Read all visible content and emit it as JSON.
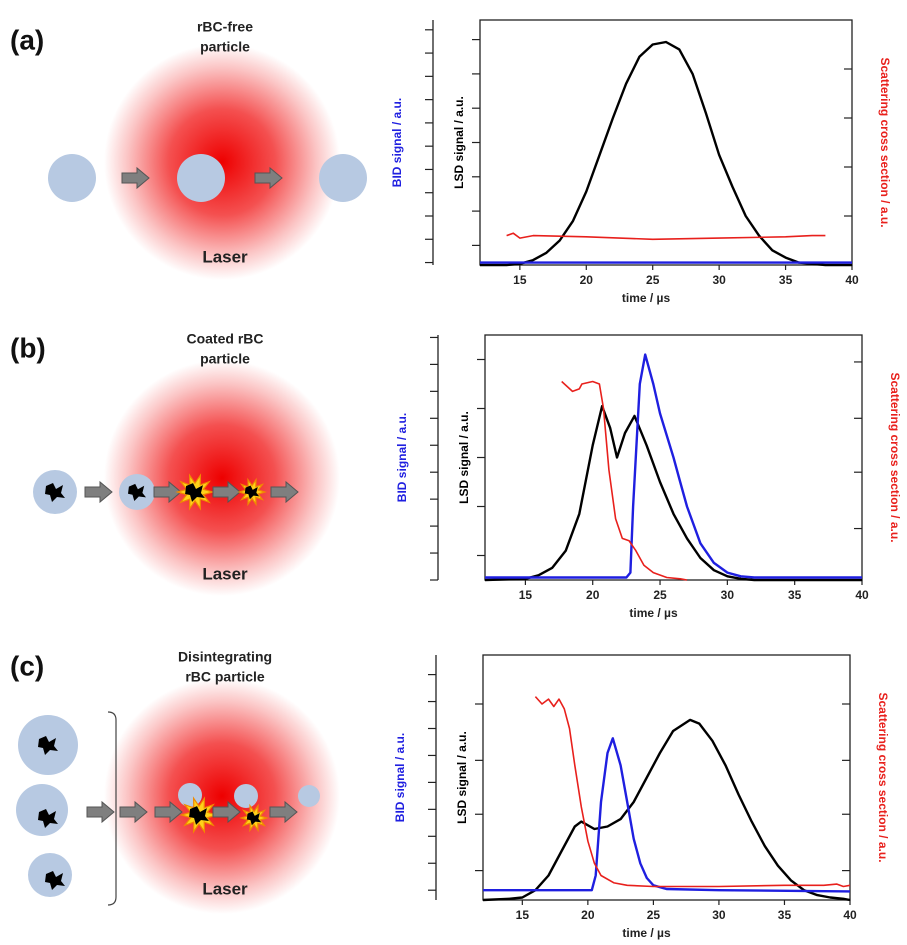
{
  "diagrams": [
    {
      "label": "(a)",
      "title": [
        "rBC-free",
        "particle"
      ],
      "laser": "Laser"
    },
    {
      "label": "(b)",
      "title": [
        "Coated rBC",
        "particle"
      ],
      "laser": "Laser"
    },
    {
      "label": "(c)",
      "title": [
        "Disintegrating",
        "rBC particle"
      ],
      "laser": "Laser"
    }
  ],
  "chart_data": [
    {
      "type": "line",
      "x_label": "time / µs",
      "y_label": "LSD signal / a.u.",
      "y3_label": "BID signal / a.u.",
      "y2_label": "Scattering cross section / a.u.",
      "xlim": [
        12,
        40
      ],
      "xticks": [
        15,
        20,
        25,
        30,
        35,
        40
      ],
      "ylim": [
        0,
        1
      ],
      "yticks": [
        0.08,
        0.22,
        0.36,
        0.5,
        0.64,
        0.78,
        0.92
      ],
      "y3lim": [
        0,
        1
      ],
      "y3ticks": [
        0.01,
        0.105,
        0.2,
        0.295,
        0.39,
        0.485,
        0.58,
        0.675,
        0.77,
        0.865,
        0.96
      ],
      "y2lim": [
        0,
        1
      ],
      "y2ticks": [
        0,
        0.2,
        0.4,
        0.6,
        0.8
      ],
      "series": [
        {
          "name": "LSD",
          "color": "#000000",
          "x": [
            12,
            13,
            14,
            15,
            16,
            17,
            18,
            19,
            20,
            21,
            22,
            23,
            24,
            25,
            26,
            27,
            28,
            29,
            30,
            31,
            32,
            33,
            34,
            35,
            36,
            37,
            38,
            39,
            40
          ],
          "values": [
            0,
            0,
            0,
            0.005,
            0.02,
            0.05,
            0.1,
            0.18,
            0.3,
            0.45,
            0.6,
            0.74,
            0.85,
            0.9,
            0.91,
            0.88,
            0.78,
            0.62,
            0.45,
            0.32,
            0.2,
            0.12,
            0.06,
            0.03,
            0.01,
            0.005,
            0,
            0,
            0
          ]
        },
        {
          "name": "BID",
          "color": "#1f1fe0",
          "axis": "y3",
          "x": [
            12,
            40
          ],
          "values": [
            0.01,
            0.01
          ]
        },
        {
          "name": "Scattering",
          "color": "#e8201c",
          "axis": "y2",
          "x": [
            14,
            14.5,
            15,
            16,
            20,
            25,
            30,
            35,
            37,
            38
          ],
          "values": [
            0.12,
            0.13,
            0.11,
            0.12,
            0.115,
            0.105,
            0.11,
            0.115,
            0.12,
            0.12
          ]
        }
      ]
    },
    {
      "type": "line",
      "x_label": "time / µs",
      "y_label": "LSD signal / a.u.",
      "y3_label": "BID signal / a.u.",
      "y2_label": "Scattering cross section / a.u.",
      "xlim": [
        12,
        40
      ],
      "xticks": [
        15,
        20,
        25,
        30,
        35,
        40
      ],
      "ylim": [
        0,
        1
      ],
      "yticks": [
        0.1,
        0.3,
        0.5,
        0.7,
        0.9
      ],
      "y3lim": [
        0,
        1
      ],
      "y3ticks": [
        0,
        0.11,
        0.22,
        0.33,
        0.44,
        0.55,
        0.66,
        0.77,
        0.88,
        0.99
      ],
      "y2lim": [
        0,
        1
      ],
      "y2ticks": [
        0.21,
        0.44,
        0.66,
        0.89
      ],
      "series": [
        {
          "name": "LSD",
          "color": "#000000",
          "x": [
            12,
            15,
            16,
            17,
            18,
            19,
            20,
            20.7,
            21.3,
            21.8,
            22.4,
            23.1,
            24,
            25,
            26,
            27,
            28,
            29,
            30,
            31,
            32,
            40
          ],
          "values": [
            0,
            0.005,
            0.02,
            0.05,
            0.12,
            0.27,
            0.55,
            0.71,
            0.62,
            0.5,
            0.6,
            0.67,
            0.55,
            0.4,
            0.27,
            0.17,
            0.09,
            0.04,
            0.015,
            0.005,
            0,
            0
          ]
        },
        {
          "name": "BID",
          "color": "#1f1fe0",
          "axis": "y3",
          "x": [
            12,
            22.5,
            22.8,
            23,
            23.5,
            23.9,
            24.5,
            25,
            26,
            26.5,
            27,
            28,
            29,
            30,
            31,
            32,
            40
          ],
          "values": [
            0.01,
            0.01,
            0.03,
            0.3,
            0.8,
            0.92,
            0.8,
            0.68,
            0.5,
            0.4,
            0.3,
            0.15,
            0.07,
            0.03,
            0.015,
            0.01,
            0.01
          ]
        },
        {
          "name": "Scattering",
          "color": "#e8201c",
          "axis": "y2",
          "x": [
            17.7,
            18.5,
            19,
            19.2,
            20,
            20.5,
            20.8,
            21.2,
            21.7,
            22.2,
            22.7,
            23.2,
            23.8,
            24.5,
            25.5,
            26.5,
            27
          ],
          "values": [
            0.81,
            0.77,
            0.78,
            0.8,
            0.81,
            0.8,
            0.7,
            0.45,
            0.25,
            0.17,
            0.16,
            0.12,
            0.06,
            0.03,
            0.01,
            0.005,
            0
          ]
        }
      ]
    },
    {
      "type": "line",
      "x_label": "time / µs",
      "y_label": "LSD signal / a.u.",
      "y3_label": "BID signal / a.u.",
      "y2_label": "Scattering cross section / a.u.",
      "xlim": [
        12,
        40
      ],
      "xticks": [
        15,
        20,
        25,
        30,
        35,
        40
      ],
      "ylim": [
        0,
        1
      ],
      "yticks": [
        0.12,
        0.35,
        0.57,
        0.8
      ],
      "y3lim": [
        0,
        1
      ],
      "y3ticks": [
        0.04,
        0.15,
        0.26,
        0.37,
        0.48,
        0.59,
        0.7,
        0.81,
        0.92
      ],
      "y2lim": [
        0,
        1
      ],
      "y2ticks": [
        0.12,
        0.35,
        0.57,
        0.8
      ],
      "series": [
        {
          "name": "LSD",
          "color": "#000000",
          "x": [
            12,
            14,
            15,
            16,
            17,
            18,
            19,
            19.5,
            20.5,
            21.5,
            22.5,
            23.5,
            24.5,
            25.5,
            26.5,
            27.8,
            28.5,
            29.5,
            30.5,
            31.5,
            32.5,
            33.5,
            34.5,
            35.5,
            36.5,
            37.5,
            38.5,
            39.5,
            40
          ],
          "values": [
            0,
            0.005,
            0.01,
            0.04,
            0.1,
            0.2,
            0.3,
            0.32,
            0.29,
            0.3,
            0.33,
            0.4,
            0.5,
            0.6,
            0.69,
            0.735,
            0.72,
            0.65,
            0.55,
            0.43,
            0.32,
            0.22,
            0.14,
            0.08,
            0.04,
            0.02,
            0.01,
            0.005,
            0
          ]
        },
        {
          "name": "BID",
          "color": "#1f1fe0",
          "axis": "y3",
          "x": [
            12,
            20.3,
            20.6,
            21,
            21.5,
            21.9,
            22.5,
            23,
            23.5,
            24,
            24.5,
            25,
            26,
            30,
            40
          ],
          "values": [
            0.04,
            0.04,
            0.1,
            0.4,
            0.6,
            0.66,
            0.55,
            0.4,
            0.25,
            0.15,
            0.09,
            0.06,
            0.045,
            0.04,
            0.035
          ]
        },
        {
          "name": "Scattering",
          "color": "#e8201c",
          "axis": "y2",
          "x": [
            16,
            16.5,
            17,
            17.4,
            17.8,
            18.2,
            18.6,
            19,
            19.5,
            20,
            20.5,
            21,
            22,
            23,
            25,
            30,
            35,
            38,
            39,
            39.5,
            40
          ],
          "values": [
            0.83,
            0.8,
            0.82,
            0.79,
            0.82,
            0.78,
            0.7,
            0.55,
            0.38,
            0.24,
            0.15,
            0.1,
            0.07,
            0.06,
            0.055,
            0.055,
            0.06,
            0.06,
            0.065,
            0.055,
            0.06
          ]
        }
      ]
    }
  ]
}
